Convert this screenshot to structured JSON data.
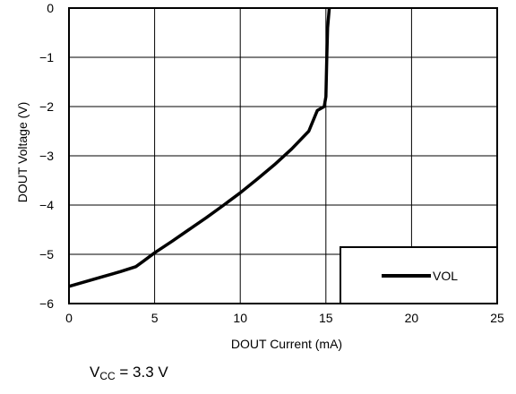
{
  "chart_data": {
    "type": "line",
    "xlabel": "DOUT Current (mA)",
    "ylabel": "DOUT Voltage (V)",
    "xlim": [
      0,
      25
    ],
    "ylim": [
      -6,
      0
    ],
    "xticks": [
      "0",
      "5",
      "10",
      "15",
      "20",
      "25"
    ],
    "yticks": [
      "0",
      "−1",
      "−2",
      "−3",
      "−4",
      "−5",
      "−6"
    ],
    "grid": true,
    "legend_position": "bottom-right",
    "series": [
      {
        "name": "VOL",
        "color": "#000000",
        "x": [
          0,
          1,
          2,
          3,
          3.9,
          4.3,
          5,
          6,
          7,
          8,
          9,
          10,
          11,
          12,
          13,
          14,
          14.5,
          14.9,
          15.0,
          15.05,
          15.1,
          15.2
        ],
        "y": [
          -5.65,
          -5.55,
          -5.45,
          -5.35,
          -5.25,
          -5.15,
          -4.97,
          -4.74,
          -4.5,
          -4.26,
          -4.01,
          -3.75,
          -3.47,
          -3.18,
          -2.86,
          -2.5,
          -2.08,
          -2.0,
          -1.8,
          -1.0,
          -0.4,
          0
        ]
      }
    ]
  },
  "footnote": {
    "var": "V",
    "sub": "CC",
    "rest": " = 3.3 V"
  }
}
